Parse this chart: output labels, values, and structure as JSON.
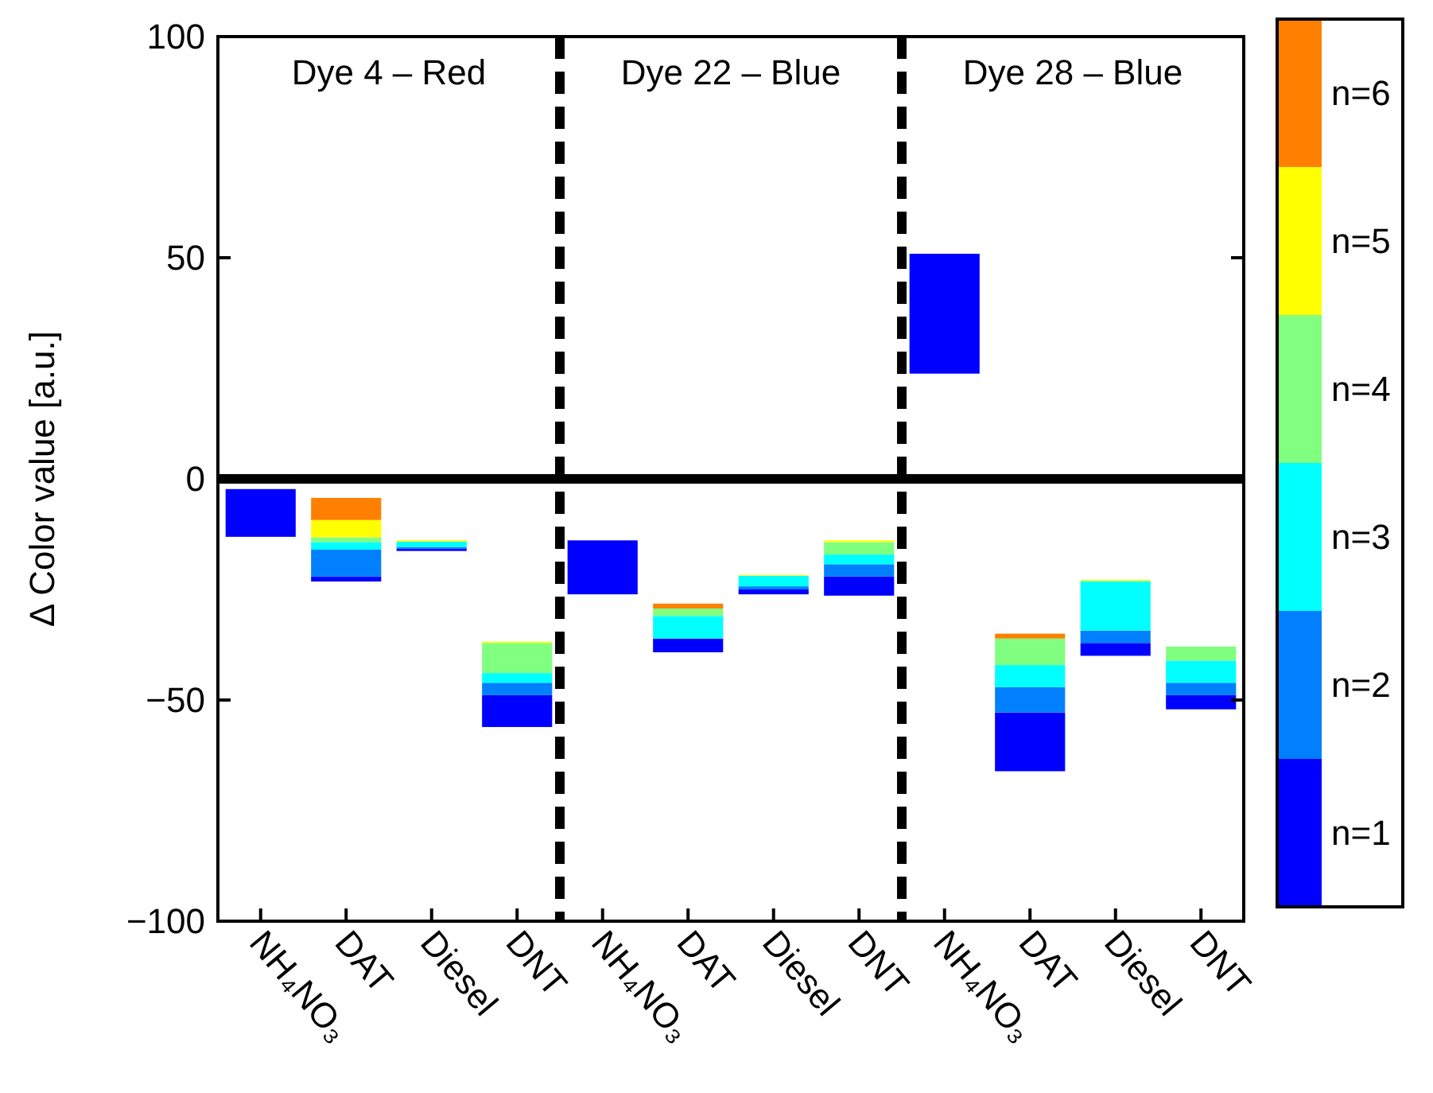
{
  "chart_data": {
    "type": "bar",
    "ylabel": "Δ Color value [a.u.]",
    "categories": [
      "NH₄NO₃",
      "DAT",
      "Diesel",
      "DNT",
      "NH₄NO₃",
      "DAT",
      "Diesel",
      "DNT",
      "NH₄NO₃",
      "DAT",
      "Diesel",
      "DNT"
    ],
    "series": [
      {
        "name": "n=1",
        "color": "#0000ff",
        "base": [
          -13.1,
          -23.2,
          -16.3,
          -56.1,
          -26.1,
          -39.2,
          -26.1,
          -26.4,
          23.8,
          -66.1,
          -40,
          -52.1
        ],
        "values": [
          10.8,
          1.1,
          0.5,
          7.2,
          12.2,
          3.1,
          1.1,
          4.3,
          27.1,
          13.3,
          2.9,
          3.2
        ]
      },
      {
        "name": "n=2",
        "color": "#0080ff",
        "base": [
          null,
          -22.1,
          -15.8,
          -48.9,
          null,
          null,
          -25,
          -22.1,
          null,
          -52.8,
          -37.1,
          -48.9
        ],
        "values": [
          null,
          6.1,
          0.4,
          2.8,
          null,
          null,
          0.7,
          2.8,
          null,
          5.7,
          2.8,
          2.8
        ]
      },
      {
        "name": "n=3",
        "color": "#00ffff",
        "base": [
          null,
          -16,
          -15.4,
          -46.1,
          null,
          -36.1,
          -24.3,
          -19.3,
          null,
          -47.1,
          -34.3,
          -46.1
        ],
        "values": [
          null,
          1.7,
          1.2,
          2.2,
          null,
          5.1,
          2.4,
          2.2,
          null,
          5,
          11.2,
          5
        ]
      },
      {
        "name": "n=4",
        "color": "#80ff80",
        "base": [
          null,
          -14.3,
          null,
          -43.9,
          null,
          -31,
          null,
          -17.1,
          null,
          -42.1,
          null,
          -41.1
        ],
        "values": [
          null,
          1.1,
          null,
          6.8,
          null,
          1.7,
          null,
          2.8,
          null,
          6,
          null,
          3.2
        ]
      },
      {
        "name": "n=5",
        "color": "#ffff00",
        "base": [
          null,
          -13.2,
          -14.2,
          -37.1,
          null,
          null,
          -21.9,
          -14.3,
          null,
          null,
          -23.1,
          null
        ],
        "values": [
          null,
          3.9,
          0.3,
          0.3,
          null,
          null,
          0.2,
          0.4,
          null,
          null,
          0.3,
          null
        ]
      },
      {
        "name": "n=6",
        "color": "#ff8000",
        "base": [
          null,
          -9.3,
          null,
          null,
          null,
          -29.3,
          null,
          null,
          null,
          -36.1,
          null,
          null
        ],
        "values": [
          null,
          5,
          null,
          null,
          null,
          1.1,
          null,
          null,
          null,
          1.1,
          null,
          null
        ]
      }
    ],
    "ylim": [
      -100,
      100
    ],
    "yticks": [
      {
        "value": -100,
        "label": "−100"
      },
      {
        "value": -50,
        "label": "−50"
      },
      0,
      50,
      100
    ],
    "ref_lines": [
      {
        "axis": "y",
        "value": 0,
        "color": "#000000",
        "line_style": "solid"
      }
    ],
    "annotations": [
      "Dye 4 – Red",
      "Dye 22 – Blue",
      "Dye 28 – Blue"
    ],
    "legend": "right"
  }
}
